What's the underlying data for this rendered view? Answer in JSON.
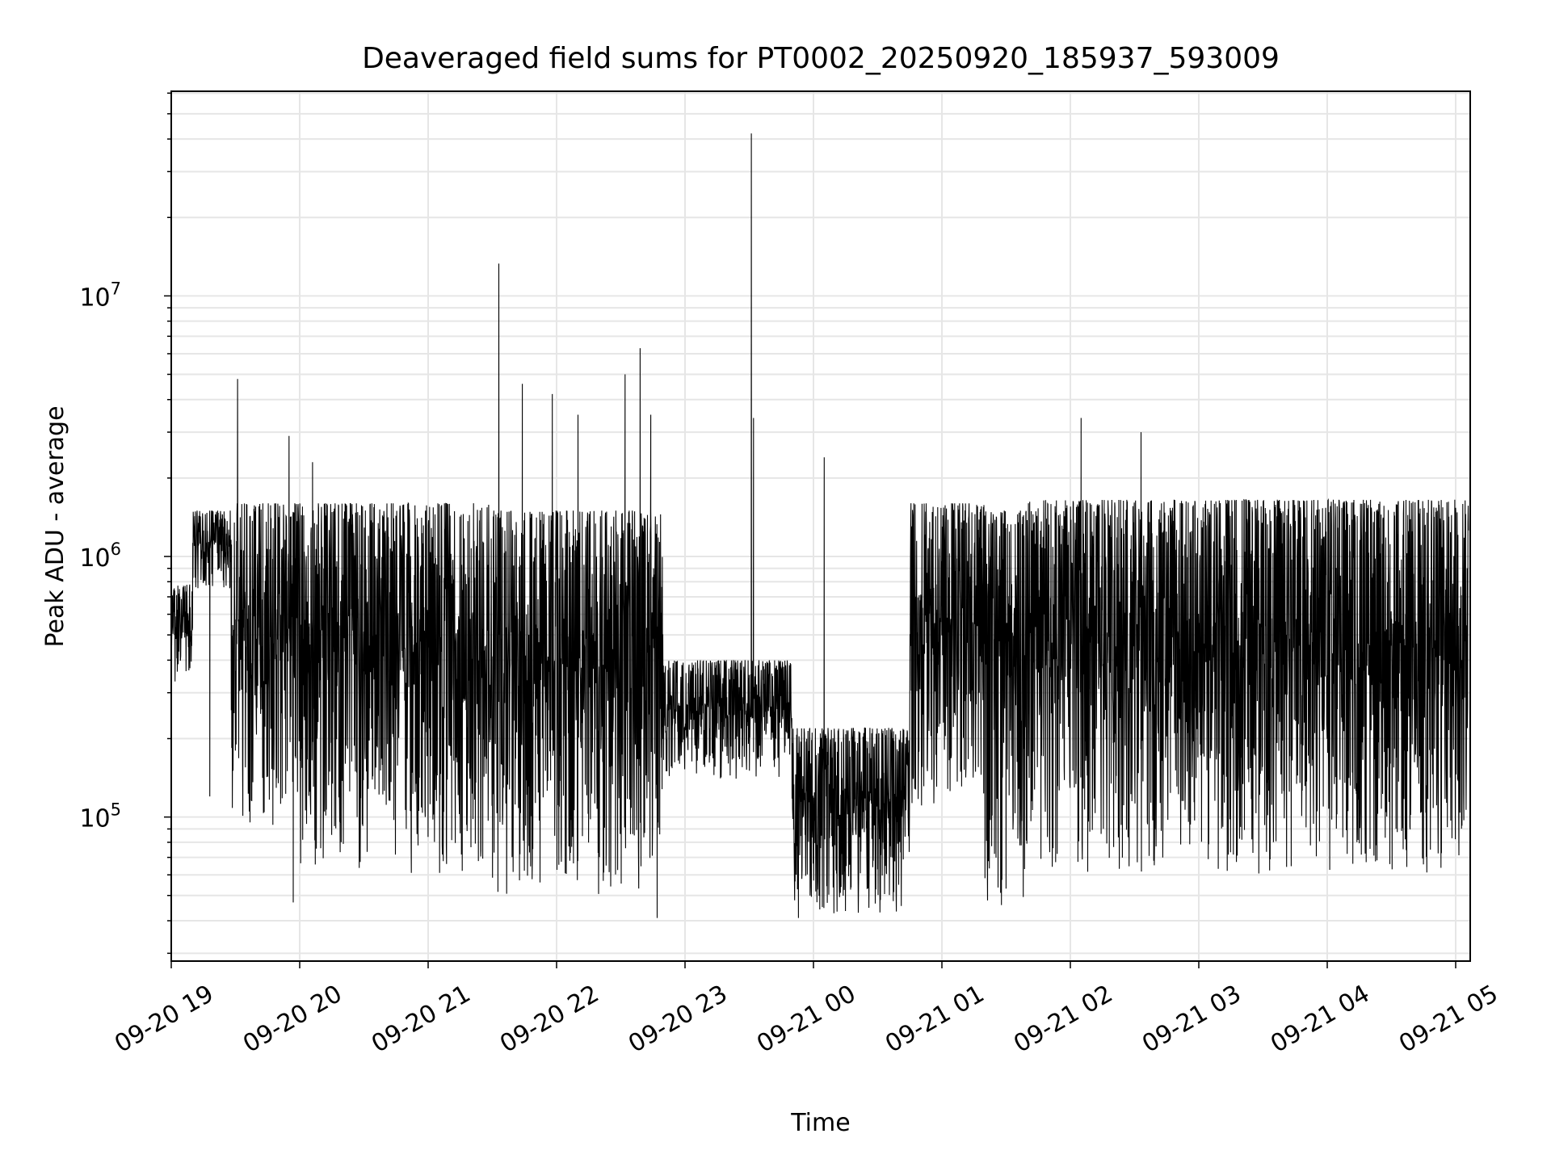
{
  "chart_data": {
    "type": "line",
    "title": "Deaveraged field sums for PT0002_20250920_185937_593009",
    "xlabel": "Time",
    "ylabel": "Peak ADU - average",
    "yscale": "log",
    "ylim": [
      28000,
      61000000
    ],
    "xlim_minutes_from_1900": [
      0,
      366
    ],
    "x_start": "09-20 18:59:37",
    "grid": true,
    "line_color": "#000000",
    "grid_color": "#e6e6e6",
    "x_ticks": [
      {
        "label": "09-20 19",
        "minute": 0
      },
      {
        "label": "09-20 20",
        "minute": 60
      },
      {
        "label": "09-20 21",
        "minute": 120
      },
      {
        "label": "09-20 22",
        "minute": 180
      },
      {
        "label": "09-20 23",
        "minute": 240
      },
      {
        "label": "09-21 00",
        "minute": 300
      },
      {
        "label": "09-21 01",
        "minute": 360
      },
      {
        "label": "09-21 02",
        "minute": 420
      },
      {
        "label": "09-21 03",
        "minute": 480
      },
      {
        "label": "09-21 04",
        "minute": 540
      },
      {
        "label": "09-21 05",
        "minute": 600
      }
    ],
    "y_ticks": [
      {
        "base": "10",
        "exp": "5",
        "value": 100000
      },
      {
        "base": "10",
        "exp": "6",
        "value": 1000000
      },
      {
        "base": "10",
        "exp": "7",
        "value": 10000000
      }
    ],
    "segments_minutes": [
      {
        "from": -0.4,
        "to": 10,
        "low": 330000,
        "high": 780000
      },
      {
        "from": 10,
        "to": 28,
        "low": 750000,
        "high": 1500000
      },
      {
        "from": 28,
        "to": 60,
        "low": 90000,
        "high": 1600000
      },
      {
        "from": 60,
        "to": 150,
        "low": 60000,
        "high": 1600000
      },
      {
        "from": 150,
        "to": 230,
        "low": 50000,
        "high": 1500000
      },
      {
        "from": 230,
        "to": 290,
        "low": 140000,
        "high": 400000
      },
      {
        "from": 290,
        "to": 345,
        "low": 42000,
        "high": 220000
      },
      {
        "from": 345,
        "to": 380,
        "low": 110000,
        "high": 1600000
      },
      {
        "from": 380,
        "to": 400,
        "low": 45000,
        "high": 1500000
      },
      {
        "from": 400,
        "to": 606,
        "low": 60000,
        "high": 1650000
      }
    ],
    "spikes": [
      {
        "minute": 31,
        "value": 4800000
      },
      {
        "minute": 55,
        "value": 2900000
      },
      {
        "minute": 66,
        "value": 2300000
      },
      {
        "minute": 153,
        "value": 13300000
      },
      {
        "minute": 164,
        "value": 4600000
      },
      {
        "minute": 178,
        "value": 4200000
      },
      {
        "minute": 190,
        "value": 3500000
      },
      {
        "minute": 212,
        "value": 5000000
      },
      {
        "minute": 219,
        "value": 6300000
      },
      {
        "minute": 224,
        "value": 3500000
      },
      {
        "minute": 271,
        "value": 42000000
      },
      {
        "minute": 272,
        "value": 3400000
      },
      {
        "minute": 305,
        "value": 2400000
      },
      {
        "minute": 425,
        "value": 3400000
      },
      {
        "minute": 453,
        "value": 3000000
      },
      {
        "minute": 57,
        "value": 47000
      },
      {
        "minute": 227,
        "value": 41000
      },
      {
        "minute": 293,
        "value": 41000
      },
      {
        "minute": 18,
        "value": 120000
      }
    ]
  }
}
